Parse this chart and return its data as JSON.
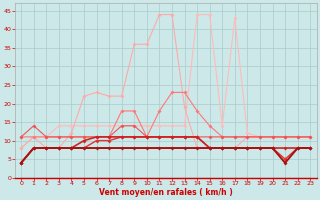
{
  "xlabel": "Vent moyen/en rafales ( km/h )",
  "bg_color": "#cce8e8",
  "grid_color": "#aacccc",
  "xlim": [
    -0.5,
    23.5
  ],
  "ylim": [
    0,
    47
  ],
  "yticks": [
    0,
    5,
    10,
    15,
    20,
    25,
    30,
    35,
    40,
    45
  ],
  "xticks": [
    0,
    1,
    2,
    3,
    4,
    5,
    6,
    7,
    8,
    9,
    10,
    11,
    12,
    13,
    14,
    15,
    16,
    17,
    18,
    19,
    20,
    21,
    22,
    23
  ],
  "series": [
    {
      "color": "#ffbbbb",
      "lw": 0.8,
      "ms": 2.0,
      "data": [
        [
          0,
          8
        ],
        [
          1,
          11
        ],
        [
          2,
          11
        ],
        [
          3,
          14
        ],
        [
          4,
          14
        ],
        [
          5,
          14
        ],
        [
          6,
          14
        ],
        [
          7,
          14
        ],
        [
          8,
          14
        ],
        [
          9,
          14
        ],
        [
          10,
          14
        ],
        [
          11,
          14
        ],
        [
          12,
          14
        ],
        [
          13,
          14
        ],
        [
          14,
          44
        ],
        [
          15,
          44
        ],
        [
          16,
          14
        ],
        [
          17,
          43
        ],
        [
          18,
          12
        ],
        [
          19,
          11
        ],
        [
          20,
          11
        ],
        [
          21,
          11
        ],
        [
          22,
          11
        ],
        [
          23,
          11
        ]
      ]
    },
    {
      "color": "#ffaaaa",
      "lw": 0.8,
      "ms": 2.0,
      "data": [
        [
          0,
          8
        ],
        [
          1,
          11
        ],
        [
          2,
          8
        ],
        [
          3,
          8
        ],
        [
          4,
          12
        ],
        [
          5,
          22
        ],
        [
          6,
          23
        ],
        [
          7,
          22
        ],
        [
          8,
          22
        ],
        [
          9,
          36
        ],
        [
          10,
          36
        ],
        [
          11,
          44
        ],
        [
          12,
          44
        ],
        [
          13,
          19
        ],
        [
          14,
          8
        ],
        [
          15,
          8
        ],
        [
          16,
          8
        ],
        [
          17,
          8
        ],
        [
          18,
          11
        ],
        [
          19,
          11
        ],
        [
          20,
          11
        ],
        [
          21,
          11
        ],
        [
          22,
          11
        ],
        [
          23,
          11
        ]
      ]
    },
    {
      "color": "#ff7777",
      "lw": 0.8,
      "ms": 2.0,
      "data": [
        [
          0,
          11
        ],
        [
          1,
          11
        ],
        [
          2,
          11
        ],
        [
          3,
          11
        ],
        [
          4,
          11
        ],
        [
          5,
          11
        ],
        [
          6,
          11
        ],
        [
          7,
          11
        ],
        [
          8,
          18
        ],
        [
          9,
          18
        ],
        [
          10,
          11
        ],
        [
          11,
          18
        ],
        [
          12,
          23
        ],
        [
          13,
          23
        ],
        [
          14,
          18
        ],
        [
          15,
          14
        ],
        [
          16,
          11
        ],
        [
          17,
          11
        ],
        [
          18,
          11
        ],
        [
          19,
          11
        ],
        [
          20,
          11
        ],
        [
          21,
          11
        ],
        [
          22,
          11
        ],
        [
          23,
          11
        ]
      ]
    },
    {
      "color": "#ee5555",
      "lw": 0.8,
      "ms": 2.0,
      "data": [
        [
          0,
          11
        ],
        [
          1,
          14
        ],
        [
          2,
          11
        ],
        [
          3,
          11
        ],
        [
          4,
          11
        ],
        [
          5,
          11
        ],
        [
          6,
          11
        ],
        [
          7,
          11
        ],
        [
          8,
          14
        ],
        [
          9,
          14
        ],
        [
          10,
          11
        ],
        [
          11,
          11
        ],
        [
          12,
          11
        ],
        [
          13,
          11
        ],
        [
          14,
          11
        ],
        [
          15,
          11
        ],
        [
          16,
          11
        ],
        [
          17,
          11
        ],
        [
          18,
          11
        ],
        [
          19,
          11
        ],
        [
          20,
          11
        ],
        [
          21,
          11
        ],
        [
          22,
          11
        ],
        [
          23,
          11
        ]
      ]
    },
    {
      "color": "#dd3333",
      "lw": 1.0,
      "ms": 2.0,
      "data": [
        [
          0,
          4
        ],
        [
          1,
          8
        ],
        [
          2,
          8
        ],
        [
          3,
          8
        ],
        [
          4,
          8
        ],
        [
          5,
          8
        ],
        [
          6,
          10
        ],
        [
          7,
          10
        ],
        [
          8,
          11
        ],
        [
          9,
          11
        ],
        [
          10,
          11
        ],
        [
          11,
          11
        ],
        [
          12,
          11
        ],
        [
          13,
          11
        ],
        [
          14,
          11
        ],
        [
          15,
          8
        ],
        [
          16,
          8
        ],
        [
          17,
          8
        ],
        [
          18,
          8
        ],
        [
          19,
          8
        ],
        [
          20,
          8
        ],
        [
          21,
          5
        ],
        [
          22,
          8
        ],
        [
          23,
          8
        ]
      ]
    },
    {
      "color": "#cc2222",
      "lw": 1.2,
      "ms": 2.0,
      "data": [
        [
          0,
          4
        ],
        [
          1,
          8
        ],
        [
          2,
          8
        ],
        [
          3,
          8
        ],
        [
          4,
          8
        ],
        [
          5,
          10
        ],
        [
          6,
          11
        ],
        [
          7,
          11
        ],
        [
          8,
          11
        ],
        [
          9,
          11
        ],
        [
          10,
          11
        ],
        [
          11,
          11
        ],
        [
          12,
          11
        ],
        [
          13,
          11
        ],
        [
          14,
          11
        ],
        [
          15,
          8
        ],
        [
          16,
          8
        ],
        [
          17,
          8
        ],
        [
          18,
          8
        ],
        [
          19,
          8
        ],
        [
          20,
          8
        ],
        [
          21,
          8
        ],
        [
          22,
          8
        ],
        [
          23,
          8
        ]
      ]
    },
    {
      "color": "#aa1111",
      "lw": 1.4,
      "ms": 2.0,
      "data": [
        [
          0,
          4
        ],
        [
          1,
          8
        ],
        [
          2,
          8
        ],
        [
          3,
          8
        ],
        [
          4,
          8
        ],
        [
          5,
          8
        ],
        [
          6,
          8
        ],
        [
          7,
          8
        ],
        [
          8,
          8
        ],
        [
          9,
          8
        ],
        [
          10,
          8
        ],
        [
          11,
          8
        ],
        [
          12,
          8
        ],
        [
          13,
          8
        ],
        [
          14,
          8
        ],
        [
          15,
          8
        ],
        [
          16,
          8
        ],
        [
          17,
          8
        ],
        [
          18,
          8
        ],
        [
          19,
          8
        ],
        [
          20,
          8
        ],
        [
          21,
          4
        ],
        [
          22,
          8
        ],
        [
          23,
          8
        ]
      ]
    }
  ]
}
